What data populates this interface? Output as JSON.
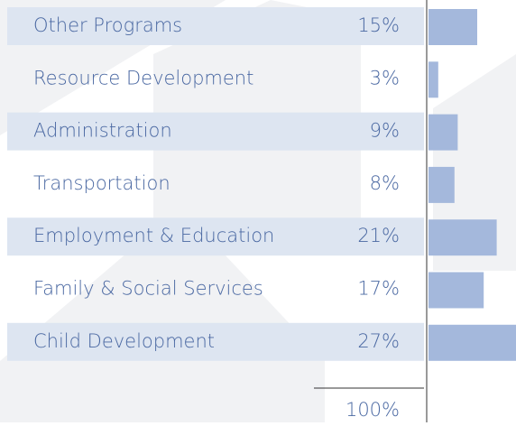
{
  "chart_data": {
    "type": "bar",
    "categories": [
      "Other Programs",
      "Resource Development",
      "Administration",
      "Transportation",
      "Employment & Education",
      "Family & Social Services",
      "Child Development"
    ],
    "values": [
      15,
      3,
      9,
      8,
      21,
      17,
      27
    ],
    "value_labels": [
      "15%",
      "3%",
      "9%",
      "8%",
      "21%",
      "17%",
      "27%"
    ],
    "color": "#a4b8dc",
    "total": {
      "value": 100,
      "label": "100%"
    }
  }
}
